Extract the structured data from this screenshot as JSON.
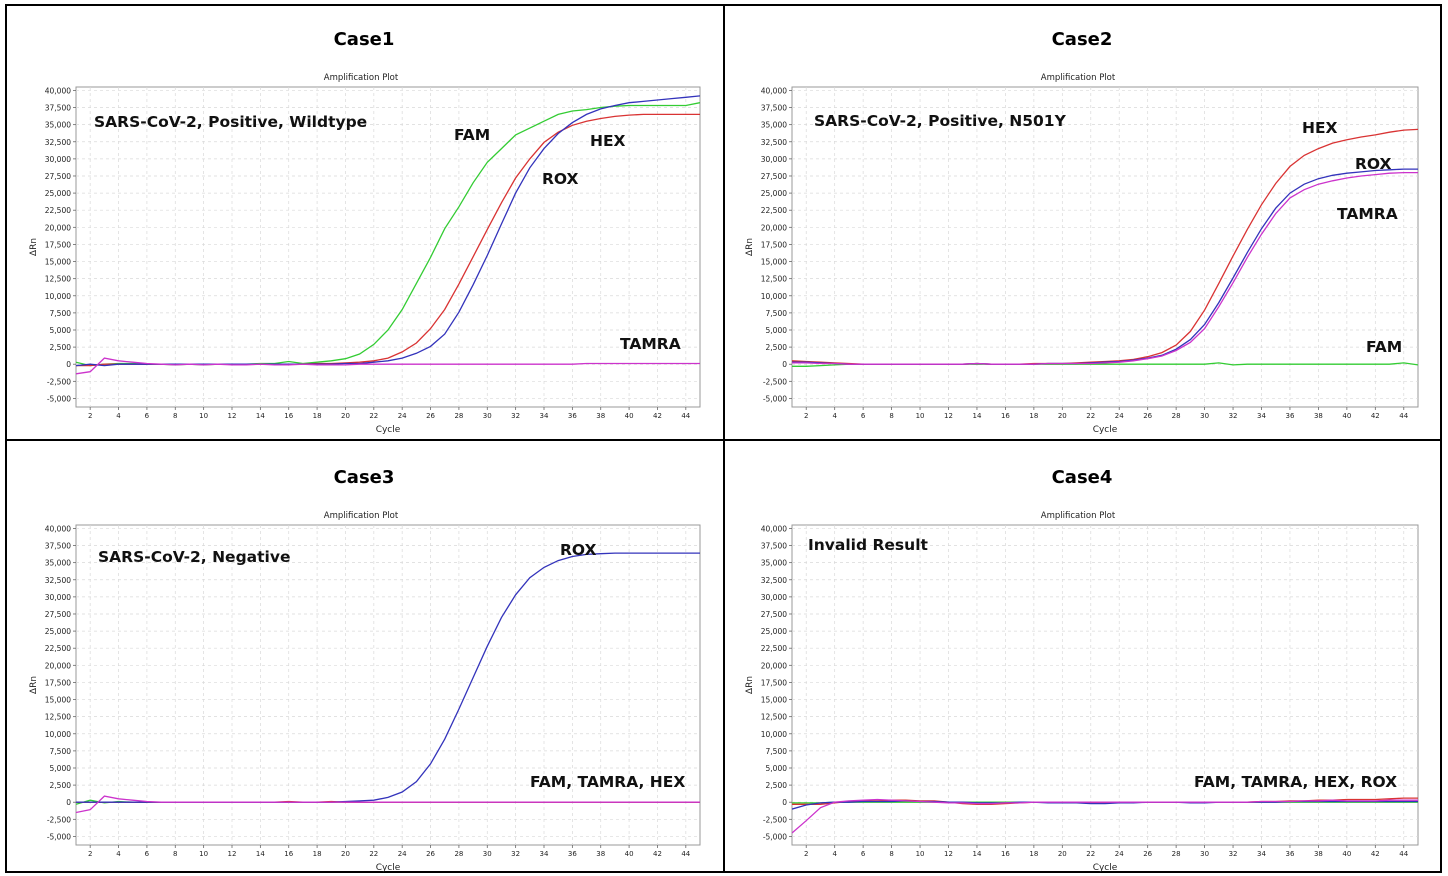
{
  "colors": {
    "FAM": "#33cc33",
    "HEX": "#d93333",
    "ROX": "#3333bb",
    "TAMRA": "#cc33cc"
  },
  "common": {
    "plot_title": "Amplification Plot",
    "xlabel": "Cycle",
    "ylabel": "ΔRn",
    "yticks": [
      "40,000",
      "37,500",
      "35,000",
      "32,500",
      "30,000",
      "27,500",
      "25,000",
      "22,500",
      "20,000",
      "17,500",
      "15,000",
      "12,500",
      "10,000",
      "7,500",
      "5,000",
      "2,500",
      "0",
      "-2,500",
      "-5,000"
    ],
    "xticks": [
      "2",
      "4",
      "6",
      "8",
      "10",
      "12",
      "14",
      "16",
      "18",
      "20",
      "22",
      "24",
      "26",
      "28",
      "30",
      "32",
      "34",
      "36",
      "38",
      "40",
      "42",
      "44"
    ]
  },
  "chart_data": [
    {
      "type": "line",
      "case_title": "Case1",
      "title": "Amplification Plot",
      "annotation": "SARS-CoV-2, Positive, Wildtype",
      "xlabel": "Cycle",
      "ylabel": "ΔRn",
      "xlim": [
        1,
        45
      ],
      "ylim": [
        -6250,
        40500
      ],
      "grid": true,
      "x": [
        1,
        2,
        3,
        4,
        5,
        6,
        7,
        8,
        9,
        10,
        11,
        12,
        13,
        14,
        15,
        16,
        17,
        18,
        19,
        20,
        21,
        22,
        23,
        24,
        25,
        26,
        27,
        28,
        29,
        30,
        31,
        32,
        33,
        34,
        35,
        36,
        37,
        38,
        39,
        40,
        41,
        42,
        43,
        44,
        45
      ],
      "labels": [
        {
          "text": "FAM",
          "series": "FAM"
        },
        {
          "text": "HEX",
          "series": "HEX"
        },
        {
          "text": "ROX",
          "series": "ROX"
        },
        {
          "text": "TAMRA",
          "series": "TAMRA"
        }
      ],
      "series": [
        {
          "name": "FAM",
          "values": [
            300,
            -200,
            0,
            100,
            100,
            0,
            0,
            -100,
            0,
            -100,
            0,
            0,
            0,
            100,
            100,
            400,
            100,
            300,
            500,
            800,
            1500,
            2900,
            5000,
            8000,
            11800,
            15600,
            19800,
            23000,
            26500,
            29500,
            31500,
            33500,
            34500,
            35500,
            36500,
            37000,
            37200,
            37500,
            37700,
            37800,
            37800,
            37800,
            37800,
            37800,
            38200
          ]
        },
        {
          "name": "HEX",
          "values": [
            -200,
            -200,
            0,
            0,
            0,
            0,
            0,
            0,
            0,
            0,
            0,
            0,
            0,
            0,
            0,
            0,
            0,
            100,
            100,
            200,
            300,
            500,
            900,
            1800,
            3100,
            5200,
            8000,
            11700,
            15700,
            19700,
            23600,
            27200,
            30000,
            32400,
            33900,
            34900,
            35500,
            35900,
            36200,
            36400,
            36500,
            36500,
            36500,
            36500,
            36500
          ]
        },
        {
          "name": "ROX",
          "values": [
            -200,
            0,
            -200,
            0,
            0,
            0,
            0,
            0,
            0,
            0,
            0,
            0,
            0,
            0,
            0,
            0,
            0,
            0,
            0,
            100,
            100,
            300,
            500,
            900,
            1600,
            2600,
            4400,
            7600,
            11600,
            15900,
            20500,
            25000,
            28700,
            31500,
            33700,
            35300,
            36500,
            37300,
            37800,
            38200,
            38400,
            38600,
            38800,
            39000,
            39200
          ]
        },
        {
          "name": "TAMRA",
          "values": [
            -1400,
            -1100,
            900,
            500,
            300,
            100,
            0,
            -100,
            0,
            -100,
            0,
            -100,
            -100,
            0,
            -100,
            -100,
            0,
            -100,
            -100,
            -100,
            0,
            0,
            0,
            0,
            0,
            0,
            0,
            0,
            0,
            0,
            0,
            0,
            0,
            0,
            0,
            0,
            100,
            100,
            100,
            100,
            100,
            100,
            100,
            100,
            100
          ]
        }
      ]
    },
    {
      "type": "line",
      "case_title": "Case2",
      "title": "Amplification Plot",
      "annotation": "SARS-CoV-2, Positive, N501Y",
      "xlabel": "Cycle",
      "ylabel": "ΔRn",
      "xlim": [
        1,
        45
      ],
      "ylim": [
        -6250,
        40500
      ],
      "grid": true,
      "x": [
        1,
        2,
        3,
        4,
        5,
        6,
        7,
        8,
        9,
        10,
        11,
        12,
        13,
        14,
        15,
        16,
        17,
        18,
        19,
        20,
        21,
        22,
        23,
        24,
        25,
        26,
        27,
        28,
        29,
        30,
        31,
        32,
        33,
        34,
        35,
        36,
        37,
        38,
        39,
        40,
        41,
        42,
        43,
        44,
        45
      ],
      "labels": [
        {
          "text": "HEX",
          "series": "HEX"
        },
        {
          "text": "ROX",
          "series": "ROX"
        },
        {
          "text": "TAMRA",
          "series": "TAMRA"
        },
        {
          "text": "FAM",
          "series": "FAM"
        }
      ],
      "series": [
        {
          "name": "FAM",
          "values": [
            -300,
            -300,
            -200,
            -100,
            0,
            0,
            0,
            0,
            0,
            0,
            0,
            0,
            0,
            0,
            0,
            0,
            0,
            0,
            0,
            0,
            0,
            0,
            0,
            0,
            0,
            0,
            0,
            0,
            0,
            0,
            200,
            -100,
            0,
            0,
            0,
            0,
            0,
            0,
            0,
            0,
            0,
            0,
            0,
            200,
            -100
          ]
        },
        {
          "name": "HEX",
          "values": [
            500,
            400,
            300,
            200,
            100,
            0,
            0,
            0,
            0,
            0,
            0,
            0,
            0,
            100,
            0,
            0,
            0,
            100,
            100,
            100,
            200,
            300,
            400,
            500,
            700,
            1100,
            1700,
            2800,
            4800,
            7900,
            11800,
            15800,
            19700,
            23300,
            26400,
            28900,
            30500,
            31500,
            32300,
            32800,
            33200,
            33500,
            33900,
            34200,
            34300
          ]
        },
        {
          "name": "ROX",
          "values": [
            300,
            300,
            200,
            100,
            0,
            0,
            0,
            0,
            0,
            0,
            0,
            0,
            0,
            100,
            0,
            0,
            0,
            0,
            100,
            100,
            100,
            200,
            300,
            400,
            600,
            900,
            1300,
            2200,
            3600,
            5800,
            9000,
            12600,
            16300,
            19800,
            22800,
            25000,
            26300,
            27100,
            27600,
            27900,
            28100,
            28300,
            28400,
            28500,
            28500
          ]
        },
        {
          "name": "TAMRA",
          "values": [
            200,
            200,
            100,
            100,
            0,
            0,
            0,
            0,
            0,
            0,
            0,
            0,
            0,
            100,
            0,
            0,
            0,
            0,
            100,
            100,
            100,
            100,
            200,
            300,
            500,
            800,
            1200,
            2000,
            3200,
            5200,
            8400,
            11900,
            15600,
            19000,
            22000,
            24300,
            25500,
            26300,
            26800,
            27200,
            27500,
            27700,
            27900,
            28000,
            28000
          ]
        }
      ]
    },
    {
      "type": "line",
      "case_title": "Case3",
      "title": "Amplification Plot",
      "annotation": "SARS-CoV-2, Negative",
      "xlabel": "Cycle",
      "ylabel": "ΔRn",
      "xlim": [
        1,
        45
      ],
      "ylim": [
        -6250,
        40500
      ],
      "grid": true,
      "x": [
        1,
        2,
        3,
        4,
        5,
        6,
        7,
        8,
        9,
        10,
        11,
        12,
        13,
        14,
        15,
        16,
        17,
        18,
        19,
        20,
        21,
        22,
        23,
        24,
        25,
        26,
        27,
        28,
        29,
        30,
        31,
        32,
        33,
        34,
        35,
        36,
        37,
        38,
        39,
        40,
        41,
        42,
        43,
        44,
        45
      ],
      "labels": [
        {
          "text": "ROX",
          "series": "ROX"
        },
        {
          "text": "FAM, TAMRA, HEX",
          "series": "FAM"
        }
      ],
      "series": [
        {
          "name": "FAM",
          "values": [
            -300,
            300,
            -100,
            100,
            0,
            0,
            0,
            0,
            0,
            0,
            0,
            0,
            0,
            0,
            0,
            0,
            0,
            0,
            0,
            0,
            0,
            0,
            0,
            0,
            0,
            0,
            0,
            0,
            0,
            0,
            0,
            0,
            0,
            0,
            0,
            0,
            0,
            0,
            0,
            0,
            0,
            0,
            0,
            0,
            0
          ]
        },
        {
          "name": "HEX",
          "values": [
            0,
            0,
            0,
            0,
            0,
            0,
            0,
            0,
            0,
            0,
            0,
            0,
            0,
            0,
            0,
            100,
            0,
            0,
            100,
            0,
            0,
            0,
            0,
            0,
            0,
            0,
            0,
            0,
            0,
            0,
            0,
            0,
            0,
            0,
            0,
            0,
            0,
            0,
            0,
            0,
            0,
            0,
            0,
            0,
            0
          ]
        },
        {
          "name": "ROX",
          "values": [
            0,
            0,
            0,
            0,
            0,
            0,
            0,
            0,
            0,
            0,
            0,
            0,
            0,
            0,
            0,
            0,
            0,
            0,
            0,
            100,
            200,
            300,
            700,
            1500,
            3000,
            5600,
            9200,
            13600,
            18200,
            22800,
            27000,
            30300,
            32800,
            34300,
            35300,
            35900,
            36200,
            36300,
            36400,
            36400,
            36400,
            36400,
            36400,
            36400,
            36400
          ]
        },
        {
          "name": "TAMRA",
          "values": [
            -1500,
            -1100,
            900,
            500,
            300,
            100,
            0,
            0,
            0,
            0,
            0,
            0,
            0,
            0,
            0,
            0,
            0,
            0,
            0,
            0,
            0,
            0,
            0,
            0,
            0,
            0,
            0,
            0,
            0,
            0,
            0,
            0,
            0,
            0,
            0,
            0,
            0,
            0,
            0,
            0,
            0,
            0,
            0,
            0,
            0
          ]
        }
      ]
    },
    {
      "type": "line",
      "case_title": "Case4",
      "title": "Amplification Plot",
      "annotation": "Invalid Result",
      "xlabel": "Cycle",
      "ylabel": "ΔRn",
      "xlim": [
        1,
        45
      ],
      "ylim": [
        -6250,
        40500
      ],
      "grid": true,
      "x": [
        1,
        2,
        3,
        4,
        5,
        6,
        7,
        8,
        9,
        10,
        11,
        12,
        13,
        14,
        15,
        16,
        17,
        18,
        19,
        20,
        21,
        22,
        23,
        24,
        25,
        26,
        27,
        28,
        29,
        30,
        31,
        32,
        33,
        34,
        35,
        36,
        37,
        38,
        39,
        40,
        41,
        42,
        43,
        44,
        45
      ],
      "labels": [
        {
          "text": "FAM, TAMRA, HEX, ROX",
          "series": "FAM"
        }
      ],
      "series": [
        {
          "name": "FAM",
          "values": [
            -100,
            -100,
            -100,
            0,
            0,
            0,
            0,
            0,
            0,
            0,
            0,
            0,
            0,
            0,
            0,
            0,
            0,
            0,
            0,
            0,
            0,
            0,
            0,
            0,
            0,
            0,
            0,
            0,
            0,
            0,
            0,
            0,
            0,
            0,
            0,
            0,
            0,
            0,
            0,
            0,
            0,
            0,
            0,
            0,
            0
          ]
        },
        {
          "name": "HEX",
          "values": [
            -300,
            -300,
            -300,
            -100,
            100,
            200,
            200,
            300,
            300,
            200,
            200,
            0,
            -200,
            -300,
            -300,
            -200,
            -100,
            0,
            0,
            0,
            0,
            -100,
            -100,
            0,
            0,
            0,
            0,
            0,
            0,
            0,
            0,
            0,
            0,
            100,
            100,
            200,
            200,
            300,
            300,
            400,
            400,
            400,
            500,
            600,
            600
          ]
        },
        {
          "name": "ROX",
          "values": [
            -1000,
            -400,
            -100,
            0,
            0,
            100,
            100,
            100,
            200,
            100,
            100,
            0,
            0,
            -100,
            -100,
            -100,
            0,
            0,
            -100,
            -100,
            -100,
            -200,
            -200,
            -100,
            -100,
            0,
            0,
            0,
            -100,
            -100,
            0,
            0,
            0,
            0,
            0,
            100,
            100,
            100,
            100,
            100,
            100,
            100,
            100,
            100,
            100
          ]
        },
        {
          "name": "TAMRA",
          "values": [
            -4500,
            -2700,
            -800,
            0,
            200,
            300,
            400,
            300,
            200,
            100,
            0,
            -100,
            -100,
            -200,
            -200,
            -100,
            -100,
            0,
            0,
            0,
            0,
            0,
            0,
            0,
            0,
            0,
            0,
            0,
            0,
            0,
            0,
            0,
            0,
            100,
            100,
            100,
            200,
            200,
            300,
            200,
            200,
            200,
            300,
            300,
            300
          ]
        }
      ]
    }
  ]
}
